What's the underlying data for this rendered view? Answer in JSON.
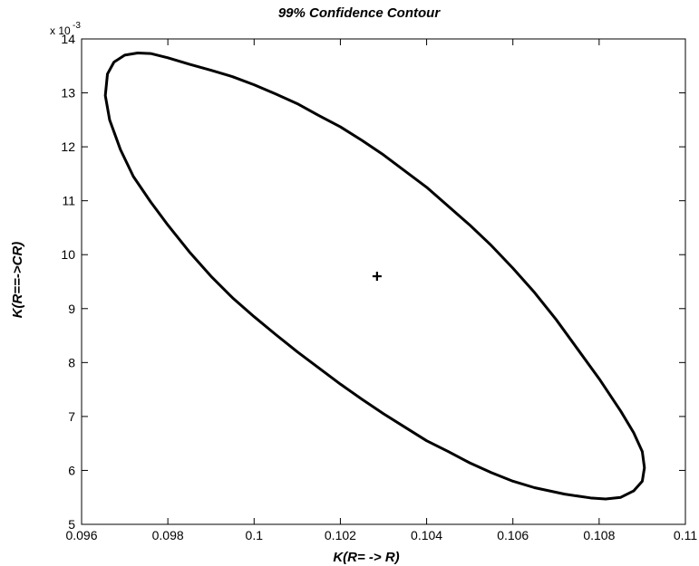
{
  "chart_data": {
    "type": "line",
    "title": "99% Confidence Contour",
    "xlabel": "K(R= -> R)",
    "ylabel": "K(R==->CR)",
    "xlim": [
      0.096,
      0.11
    ],
    "ylim": [
      5,
      14
    ],
    "y_multiplier_label": "x 10",
    "y_multiplier_exponent": "-3",
    "x_ticks": [
      0.096,
      0.098,
      0.1,
      0.102,
      0.104,
      0.106,
      0.108,
      0.11
    ],
    "x_tick_labels": [
      "0.096",
      "0.098",
      "0.1",
      "0.102",
      "0.104",
      "0.106",
      "0.108",
      "0.11"
    ],
    "y_ticks": [
      5,
      6,
      7,
      8,
      9,
      10,
      11,
      12,
      13,
      14
    ],
    "y_tick_labels": [
      "5",
      "6",
      "7",
      "8",
      "9",
      "10",
      "11",
      "12",
      "13",
      "14"
    ],
    "grid": false,
    "series": [
      {
        "kind": "contour",
        "color": "#000000",
        "x": [
          0.0966,
          0.09675,
          0.097,
          0.0973,
          0.0976,
          0.098,
          0.0985,
          0.099,
          0.0995,
          0.1,
          0.1005,
          0.101,
          0.1015,
          0.102,
          0.1025,
          0.103,
          0.1035,
          0.104,
          0.1045,
          0.105,
          0.1055,
          0.106,
          0.1065,
          0.107,
          0.1075,
          0.108,
          0.1085,
          0.1088,
          0.109,
          0.10905,
          0.109,
          0.1088,
          0.1085,
          0.10815,
          0.1078,
          0.1072,
          0.1065,
          0.106,
          0.1055,
          0.105,
          0.1045,
          0.104,
          0.1035,
          0.103,
          0.1025,
          0.102,
          0.1015,
          0.101,
          0.1005,
          0.1,
          0.0995,
          0.099,
          0.0985,
          0.098,
          0.0976,
          0.0972,
          0.0969,
          0.09665,
          0.09655,
          0.0966
        ],
        "y": [
          13.35,
          13.57,
          13.7,
          13.74,
          13.73,
          13.65,
          13.53,
          13.42,
          13.3,
          13.15,
          12.98,
          12.8,
          12.58,
          12.37,
          12.12,
          11.85,
          11.55,
          11.25,
          10.9,
          10.55,
          10.17,
          9.75,
          9.3,
          8.8,
          8.25,
          7.7,
          7.1,
          6.7,
          6.35,
          6.05,
          5.8,
          5.62,
          5.5,
          5.47,
          5.49,
          5.56,
          5.68,
          5.8,
          5.96,
          6.14,
          6.35,
          6.55,
          6.8,
          7.05,
          7.32,
          7.6,
          7.9,
          8.2,
          8.52,
          8.85,
          9.2,
          9.6,
          10.05,
          10.55,
          10.98,
          11.45,
          11.95,
          12.5,
          12.95,
          13.35
        ]
      },
      {
        "kind": "marker",
        "marker": "+",
        "color": "#000000",
        "x": [
          0.10285
        ],
        "y": [
          9.6
        ]
      }
    ]
  }
}
